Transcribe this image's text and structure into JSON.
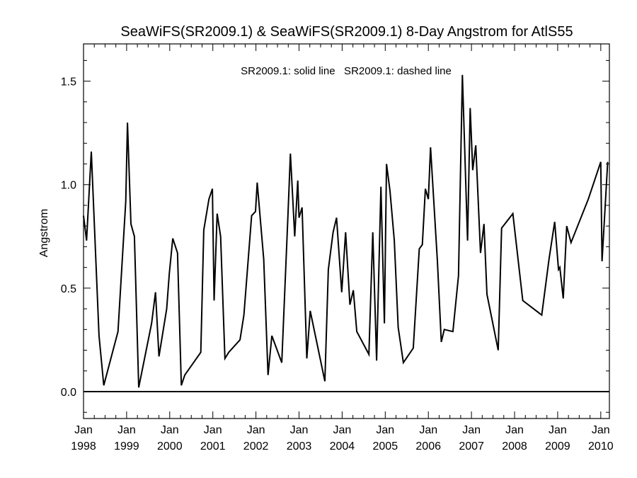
{
  "chart_data": {
    "type": "line",
    "title": "SeaWiFS(SR2009.1) & SeaWiFS(SR2009.1) 8-Day Angstrom for AtlS55",
    "annotation": "SR2009.1: solid line   SR2009.1: dashed line",
    "xlabel": "",
    "ylabel": "Angstrom",
    "xlim": [
      1998.0,
      2010.2
    ],
    "ylim": [
      -0.13,
      1.68
    ],
    "yticks": [
      {
        "value": 0.0,
        "label": "0.0"
      },
      {
        "value": 0.5,
        "label": "0.5"
      },
      {
        "value": 1.0,
        "label": "1.0"
      },
      {
        "value": 1.5,
        "label": "1.5"
      }
    ],
    "xticks": [
      {
        "value": 1998,
        "month": "Jan",
        "year": "1998"
      },
      {
        "value": 1999,
        "month": "Jan",
        "year": "1999"
      },
      {
        "value": 2000,
        "month": "Jan",
        "year": "2000"
      },
      {
        "value": 2001,
        "month": "Jan",
        "year": "2001"
      },
      {
        "value": 2002,
        "month": "Jan",
        "year": "2002"
      },
      {
        "value": 2003,
        "month": "Jan",
        "year": "2003"
      },
      {
        "value": 2004,
        "month": "Jan",
        "year": "2004"
      },
      {
        "value": 2005,
        "month": "Jan",
        "year": "2005"
      },
      {
        "value": 2006,
        "month": "Jan",
        "year": "2006"
      },
      {
        "value": 2007,
        "month": "Jan",
        "year": "2007"
      },
      {
        "value": 2008,
        "month": "Jan",
        "year": "2008"
      },
      {
        "value": 2009,
        "month": "Jan",
        "year": "2009"
      },
      {
        "value": 2010,
        "month": "Jan",
        "year": "2010"
      }
    ],
    "grid": false,
    "series": [
      {
        "style": "solid",
        "points": [
          [
            1998.0,
            0.85
          ],
          [
            1998.07,
            0.73
          ],
          [
            1998.18,
            1.16
          ],
          [
            1998.36,
            0.27
          ],
          [
            1998.47,
            0.03
          ],
          [
            1998.8,
            0.29
          ],
          [
            1998.98,
            0.92
          ],
          [
            1999.02,
            1.3
          ],
          [
            1999.1,
            0.81
          ],
          [
            1999.18,
            0.75
          ],
          [
            1999.28,
            0.02
          ],
          [
            1999.58,
            0.33
          ],
          [
            1999.67,
            0.48
          ],
          [
            1999.75,
            0.17
          ],
          [
            1999.93,
            0.4
          ],
          [
            1999.99,
            0.57
          ],
          [
            2000.07,
            0.74
          ],
          [
            2000.18,
            0.67
          ],
          [
            2000.27,
            0.03
          ],
          [
            2000.35,
            0.08
          ],
          [
            2000.72,
            0.19
          ],
          [
            2000.79,
            0.78
          ],
          [
            2000.91,
            0.93
          ],
          [
            2000.99,
            0.98
          ],
          [
            2001.03,
            0.44
          ],
          [
            2001.1,
            0.86
          ],
          [
            2001.18,
            0.75
          ],
          [
            2001.28,
            0.16
          ],
          [
            2001.37,
            0.19
          ],
          [
            2001.63,
            0.25
          ],
          [
            2001.72,
            0.37
          ],
          [
            2001.9,
            0.85
          ],
          [
            2001.99,
            0.87
          ],
          [
            2002.03,
            1.01
          ],
          [
            2002.18,
            0.64
          ],
          [
            2002.28,
            0.08
          ],
          [
            2002.37,
            0.27
          ],
          [
            2002.6,
            0.14
          ],
          [
            2002.74,
            0.84
          ],
          [
            2002.8,
            1.15
          ],
          [
            2002.9,
            0.75
          ],
          [
            2002.97,
            1.02
          ],
          [
            2003.0,
            0.84
          ],
          [
            2003.07,
            0.89
          ],
          [
            2003.18,
            0.16
          ],
          [
            2003.26,
            0.39
          ],
          [
            2003.6,
            0.05
          ],
          [
            2003.68,
            0.59
          ],
          [
            2003.79,
            0.77
          ],
          [
            2003.87,
            0.84
          ],
          [
            2003.99,
            0.48
          ],
          [
            2004.08,
            0.77
          ],
          [
            2004.18,
            0.42
          ],
          [
            2004.26,
            0.49
          ],
          [
            2004.34,
            0.29
          ],
          [
            2004.62,
            0.18
          ],
          [
            2004.71,
            0.77
          ],
          [
            2004.8,
            0.15
          ],
          [
            2004.9,
            0.99
          ],
          [
            2004.98,
            0.33
          ],
          [
            2005.03,
            1.1
          ],
          [
            2005.11,
            0.97
          ],
          [
            2005.21,
            0.73
          ],
          [
            2005.3,
            0.31
          ],
          [
            2005.42,
            0.14
          ],
          [
            2005.65,
            0.21
          ],
          [
            2005.79,
            0.69
          ],
          [
            2005.86,
            0.71
          ],
          [
            2005.93,
            0.98
          ],
          [
            2006.0,
            0.93
          ],
          [
            2006.05,
            1.18
          ],
          [
            2006.21,
            0.63
          ],
          [
            2006.3,
            0.24
          ],
          [
            2006.37,
            0.3
          ],
          [
            2006.57,
            0.29
          ],
          [
            2006.7,
            0.56
          ],
          [
            2006.79,
            1.53
          ],
          [
            2006.91,
            0.73
          ],
          [
            2006.97,
            1.37
          ],
          [
            2007.03,
            1.07
          ],
          [
            2007.1,
            1.19
          ],
          [
            2007.21,
            0.67
          ],
          [
            2007.29,
            0.81
          ],
          [
            2007.36,
            0.47
          ],
          [
            2007.62,
            0.2
          ],
          [
            2007.7,
            0.79
          ],
          [
            2007.96,
            0.86
          ],
          [
            2008.19,
            0.44
          ],
          [
            2008.63,
            0.37
          ],
          [
            2008.8,
            0.64
          ],
          [
            2008.93,
            0.82
          ],
          [
            2009.02,
            0.59
          ],
          [
            2009.05,
            0.6
          ],
          [
            2009.13,
            0.45
          ],
          [
            2009.21,
            0.8
          ],
          [
            2009.31,
            0.72
          ],
          [
            2009.71,
            0.93
          ],
          [
            2010.0,
            1.11
          ],
          [
            2010.03,
            0.63
          ],
          [
            2010.16,
            1.11
          ]
        ]
      },
      {
        "style": "solid",
        "points": [
          [
            1998.0,
            0.0
          ],
          [
            2010.2,
            0.0
          ]
        ]
      }
    ]
  }
}
